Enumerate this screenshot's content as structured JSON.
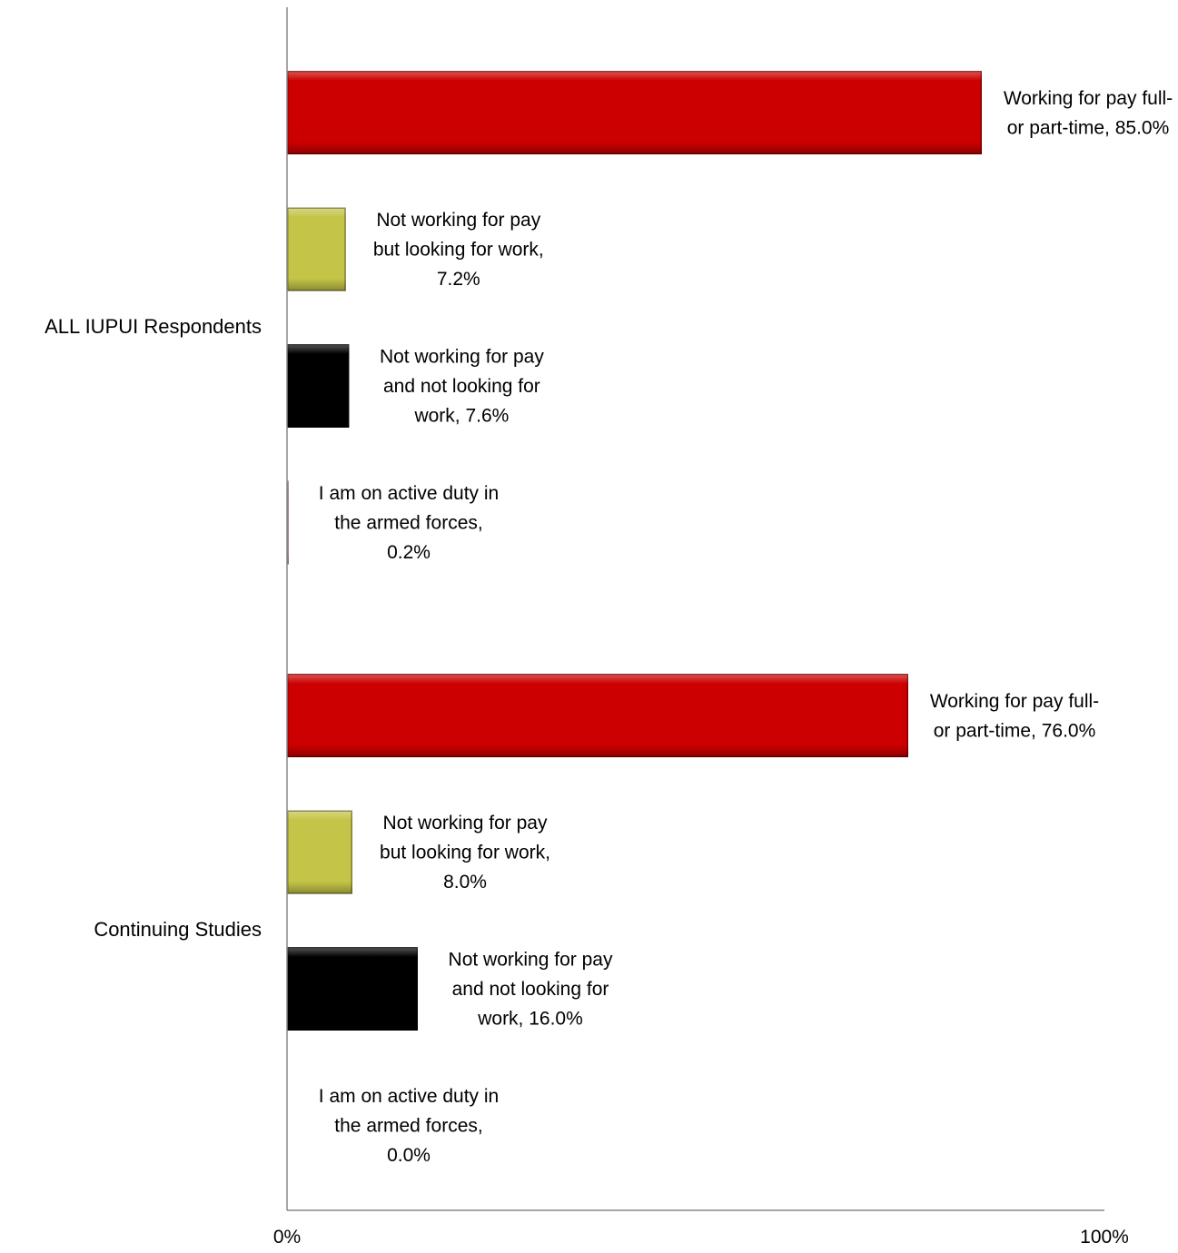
{
  "chart_data": {
    "type": "bar",
    "orientation": "horizontal",
    "title": "",
    "xlabel": "",
    "ylabel": "",
    "xlim": [
      0,
      100
    ],
    "x_ticks": [
      "0%",
      "100%"
    ],
    "grid": false,
    "legend": "none",
    "groups": [
      {
        "name": "ALL IUPUI Respondents",
        "bars": [
          {
            "label": [
              "Working for pay full-",
              "or part-time, 85.0%"
            ],
            "value": 85.0,
            "color": "#cc0000"
          },
          {
            "label": [
              "Not working for pay",
              "but looking for work,",
              "7.2%"
            ],
            "value": 7.2,
            "color": "#c4c448"
          },
          {
            "label": [
              "Not working for pay",
              "and not looking for",
              "work, 7.6%"
            ],
            "value": 7.6,
            "color": "#000000"
          },
          {
            "label": [
              "I am on active duty in",
              "the armed forces,",
              "0.2%"
            ],
            "value": 0.2,
            "color": "#d8b0a8"
          }
        ]
      },
      {
        "name": "Continuing Studies",
        "bars": [
          {
            "label": [
              "Working for pay full-",
              "or part-time, 76.0%"
            ],
            "value": 76.0,
            "color": "#cc0000"
          },
          {
            "label": [
              "Not working for pay",
              "but looking for work,",
              "8.0%"
            ],
            "value": 8.0,
            "color": "#c4c448"
          },
          {
            "label": [
              "Not working for pay",
              "and not looking for",
              "work, 16.0%"
            ],
            "value": 16.0,
            "color": "#000000"
          },
          {
            "label": [
              "I am on active duty in",
              "the armed forces,",
              "0.0%"
            ],
            "value": 0.0,
            "color": "#d8b0a8"
          }
        ]
      }
    ]
  }
}
